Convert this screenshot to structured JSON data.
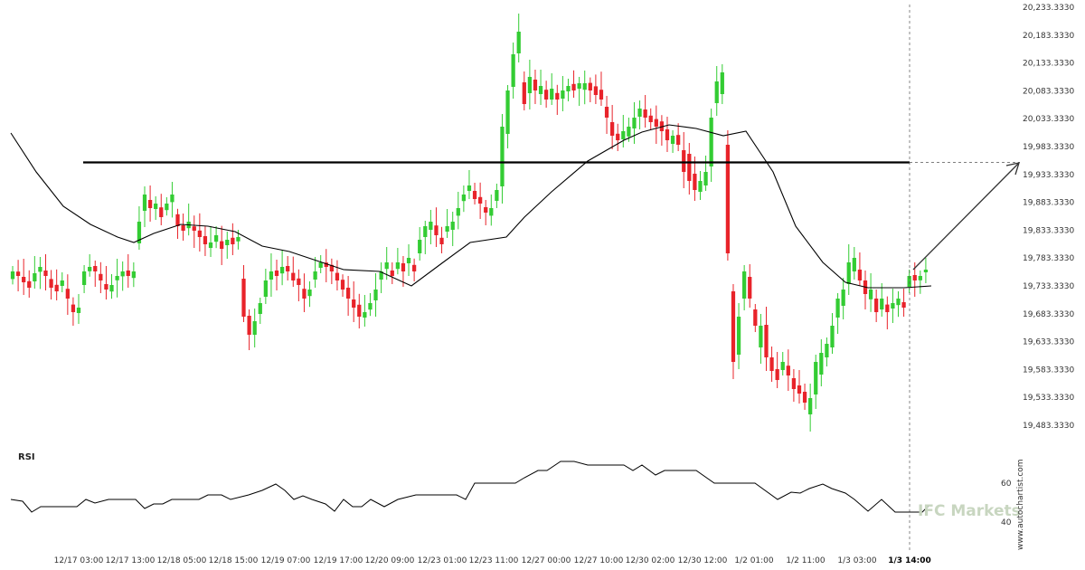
{
  "chart_data": {
    "type": "candlestick",
    "y_axis": {
      "range": [
        19458.333,
        20233.333
      ],
      "ticks": [
        "20,233.3330",
        "20,183.3330",
        "20,133.3330",
        "20,083.3330",
        "20,033.3330",
        "19,983.3330",
        "19,933.3330",
        "19,883.3330",
        "19,833.3330",
        "19,783.3330",
        "19,733.3330",
        "19,683.3330",
        "19,633.3330",
        "19,583.3330",
        "19,533.3330",
        "19,483.3330"
      ]
    },
    "x_axis": {
      "ticks": [
        "12/17 03:00",
        "12/17 13:00",
        "12/18 05:00",
        "12/18 15:00",
        "12/19 07:00",
        "12/19 17:00",
        "12/20 09:00",
        "12/23 01:00",
        "12/23 11:00",
        "12/27 00:00",
        "12/27 10:00",
        "12/30 02:00",
        "12/30 12:00",
        "1/2 01:00",
        "1/2 11:00",
        "1/3 03:00",
        "1/3 14:00"
      ],
      "highlight": "1/3 14:00"
    },
    "resistance_level": 19953,
    "forecast_arrow": {
      "from_x": "1/3 14:00",
      "from_y": 19760,
      "to_y": 19953
    },
    "rsi": {
      "title": "RSI",
      "ticks": [
        "60",
        "40"
      ],
      "range": [
        33,
        87
      ]
    },
    "colors": {
      "up": "#33cc33",
      "down": "#e8232a",
      "ma": "#000000",
      "level": "#000000"
    }
  },
  "watermark": "IFC Markets",
  "side_credit": "www.autochartist.com"
}
